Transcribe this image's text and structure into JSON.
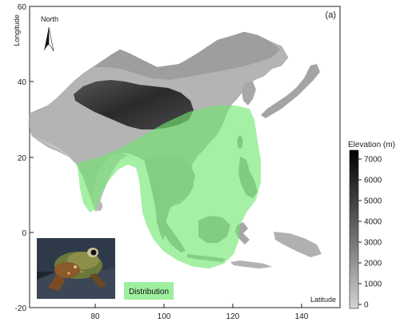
{
  "map": {
    "panel_label": "(a)",
    "north_label": "North",
    "y_axis_title": "Longitude",
    "x_axis_title": "Latitude",
    "x_ticks": [
      "80",
      "100",
      "120",
      "140"
    ],
    "y_ticks": [
      "60",
      "40",
      "20",
      "0",
      "-20"
    ],
    "x_range": [
      61,
      146
    ],
    "y_range": [
      -20,
      60
    ],
    "distribution_legend": "Distribution",
    "distribution_color": "#7dea7d",
    "land_color": "#a8a8a8",
    "plateau_color": "#3c3c3c"
  },
  "colorbar": {
    "title": "Elevation (m)",
    "ticks": [
      "7000",
      "6000",
      "5000",
      "4000",
      "3000",
      "2000",
      "1000",
      "0"
    ],
    "min_color": "#c8c8c8",
    "max_color": "#000000"
  },
  "inset_photo": {
    "subject": "frog-photo"
  }
}
